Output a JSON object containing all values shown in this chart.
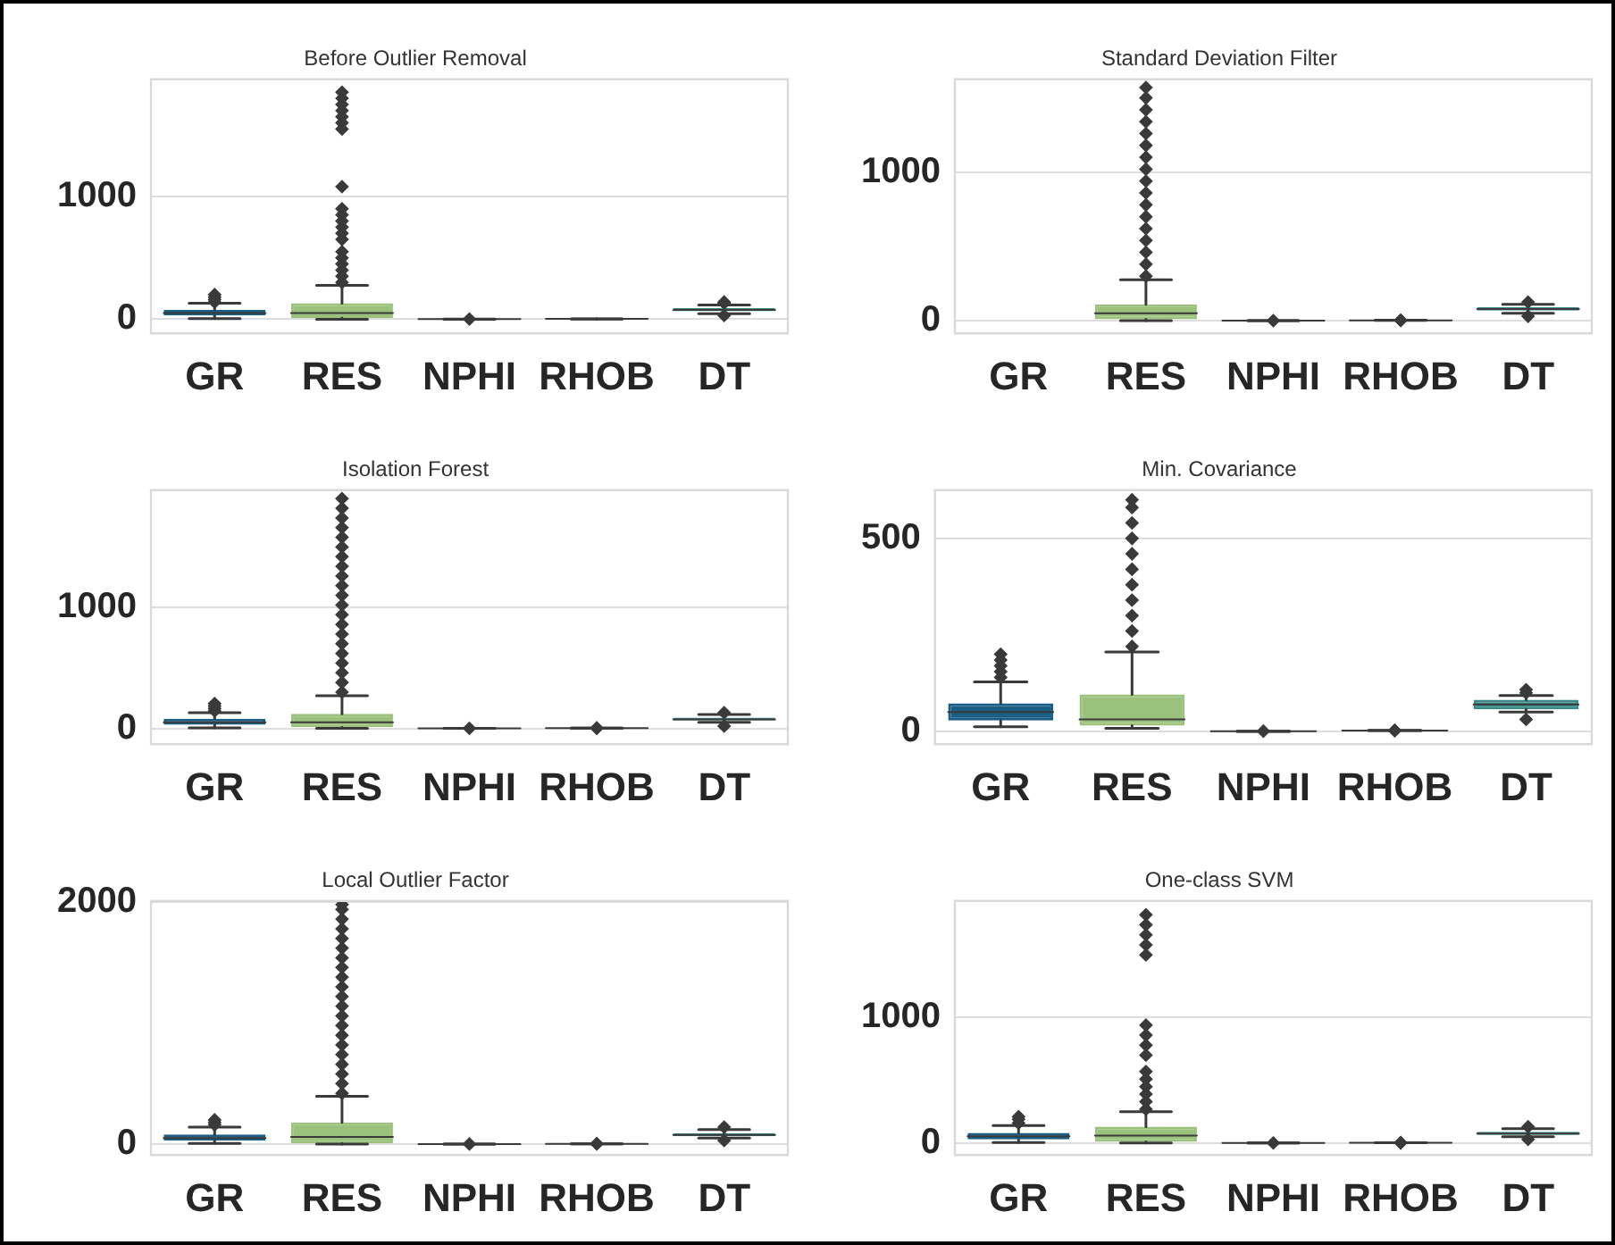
{
  "chart_data": [
    {
      "type": "box",
      "title": "Before Outlier Removal",
      "categories": [
        "GR",
        "RES",
        "NPHI",
        "RHOB",
        "DT"
      ],
      "colors": [
        "#1b5e85",
        "#9bc27c",
        "#5b3a6b",
        "#c9a25b",
        "#3a8a8a"
      ],
      "ylim": [
        -115,
        1955
      ],
      "yticks": [
        0,
        1000
      ],
      "grid": "y",
      "marker": "diamond",
      "boxes": [
        {
          "low": 5,
          "q1": 30,
          "median": 50,
          "q3": 75,
          "high": 130,
          "outliers": [
            140,
            160,
            180,
            200
          ]
        },
        {
          "low": 0,
          "q1": 10,
          "median": 50,
          "q3": 130,
          "high": 275,
          "outliers": [
            300,
            350,
            400,
            450,
            500,
            550,
            650,
            700,
            750,
            800,
            850,
            900,
            1080,
            1550,
            1600,
            1650,
            1700,
            1750,
            1800,
            1850
          ]
        },
        {
          "low": 0,
          "q1": 0.1,
          "median": 0.2,
          "q3": 0.3,
          "high": 0.55,
          "outliers": [
            0.7
          ]
        },
        {
          "low": 2,
          "q1": 2.3,
          "median": 2.45,
          "q3": 2.55,
          "high": 2.8
        },
        {
          "low": 45,
          "q1": 65,
          "median": 75,
          "q3": 90,
          "high": 115,
          "outliers": [
            30,
            130,
            140
          ]
        }
      ]
    },
    {
      "type": "box",
      "title": "Standard Deviation Filter",
      "categories": [
        "GR",
        "RES",
        "NPHI",
        "RHOB",
        "DT"
      ],
      "colors": [
        "#1b5e85",
        "#9bc27c",
        "#5b3a6b",
        "#c9a25b",
        "#3a8a8a"
      ],
      "ylim": [
        -85,
        1625
      ],
      "yticks": [
        0,
        1000
      ],
      "grid": "y",
      "marker": "diamond",
      "boxes": [
        null,
        {
          "low": 0,
          "q1": 10,
          "median": 50,
          "q3": 110,
          "high": 275,
          "outliers": [
            300,
            380,
            460,
            540,
            620,
            700,
            780,
            860,
            940,
            1020,
            1100,
            1180,
            1260,
            1340,
            1420,
            1500,
            1570
          ]
        },
        {
          "low": 0,
          "q1": 0.1,
          "median": 0.2,
          "q3": 0.3,
          "high": 0.55,
          "outliers": [
            0.7
          ]
        },
        {
          "low": 2,
          "q1": 2.3,
          "median": 2.45,
          "q3": 2.55,
          "high": 2.8,
          "outliers": [
            1.8,
            3
          ]
        },
        {
          "low": 50,
          "q1": 68,
          "median": 78,
          "q3": 90,
          "high": 110,
          "outliers": [
            30,
            125
          ]
        }
      ]
    },
    {
      "type": "box",
      "title": "Isolation Forest",
      "categories": [
        "GR",
        "RES",
        "NPHI",
        "RHOB",
        "DT"
      ],
      "colors": [
        "#1b5e85",
        "#9bc27c",
        "#5b3a6b",
        "#c9a25b",
        "#3a8a8a"
      ],
      "ylim": [
        -130,
        1970
      ],
      "yticks": [
        0,
        1000
      ],
      "grid": "y",
      "marker": "diamond",
      "boxes": [
        {
          "low": 5,
          "q1": 30,
          "median": 50,
          "q3": 80,
          "high": 130,
          "outliers": [
            145,
            165,
            185,
            205
          ]
        },
        {
          "low": 0,
          "q1": 10,
          "median": 50,
          "q3": 120,
          "high": 270,
          "outliers": [
            300,
            380,
            460,
            540,
            620,
            700,
            780,
            860,
            940,
            1020,
            1100,
            1180,
            1260,
            1340,
            1420,
            1500,
            1580,
            1660,
            1740,
            1820,
            1900
          ]
        },
        {
          "low": 0,
          "q1": 0.1,
          "median": 0.2,
          "q3": 0.3,
          "high": 0.55,
          "outliers": [
            0.7
          ]
        },
        {
          "low": 2,
          "q1": 2.3,
          "median": 2.45,
          "q3": 2.55,
          "high": 2.8,
          "outliers": [
            1.8,
            3
          ]
        },
        {
          "low": 50,
          "q1": 65,
          "median": 75,
          "q3": 90,
          "high": 115,
          "outliers": [
            20,
            130
          ]
        }
      ]
    },
    {
      "type": "box",
      "title": "Min. Covariance",
      "categories": [
        "GR",
        "RES",
        "NPHI",
        "RHOB",
        "DT"
      ],
      "colors": [
        "#1b5e85",
        "#9bc27c",
        "#5b3a6b",
        "#c9a25b",
        "#3a8a8a"
      ],
      "ylim": [
        -33,
        625
      ],
      "yticks": [
        0,
        500
      ],
      "grid": "y",
      "marker": "diamond",
      "boxes": [
        {
          "low": 12,
          "q1": 28,
          "median": 50,
          "q3": 73,
          "high": 128,
          "outliers": [
            140,
            155,
            170,
            185,
            200
          ]
        },
        {
          "low": 8,
          "q1": 15,
          "median": 31,
          "q3": 96,
          "high": 206,
          "outliers": [
            220,
            260,
            300,
            340,
            380,
            420,
            460,
            500,
            540,
            580,
            600
          ]
        },
        {
          "low": 0,
          "q1": 0.1,
          "median": 0.2,
          "q3": 0.3,
          "high": 0.55,
          "outliers": [
            0.7
          ]
        },
        {
          "low": 2,
          "q1": 2.3,
          "median": 2.45,
          "q3": 2.55,
          "high": 2.8,
          "outliers": [
            1.8,
            3
          ]
        },
        {
          "low": 50,
          "q1": 57,
          "median": 70,
          "q3": 82,
          "high": 93,
          "outliers": [
            31,
            100,
            108
          ]
        }
      ]
    },
    {
      "type": "box",
      "title": "Local Outlier Factor",
      "categories": [
        "GR",
        "RES",
        "NPHI",
        "RHOB",
        "DT"
      ],
      "colors": [
        "#1b5e85",
        "#9bc27c",
        "#5b3a6b",
        "#c9a25b",
        "#3a8a8a"
      ],
      "ylim": [
        -90,
        2010
      ],
      "yticks": [
        0,
        2000
      ],
      "grid": "y",
      "marker": "diamond",
      "boxes": [
        {
          "low": 5,
          "q1": 30,
          "median": 50,
          "q3": 80,
          "high": 140,
          "outliers": [
            160,
            180,
            200
          ]
        },
        {
          "low": 0,
          "q1": 5,
          "median": 60,
          "q3": 180,
          "high": 395,
          "outliers": [
            420,
            500,
            580,
            660,
            740,
            820,
            900,
            980,
            1060,
            1140,
            1220,
            1300,
            1380,
            1460,
            1540,
            1620,
            1700,
            1780,
            1860,
            1940,
            1980
          ]
        },
        {
          "low": 0,
          "q1": 0.1,
          "median": 0.2,
          "q3": 0.3,
          "high": 0.55,
          "outliers": [
            0.7
          ]
        },
        {
          "low": 2,
          "q1": 2.3,
          "median": 2.45,
          "q3": 2.55,
          "high": 2.8,
          "outliers": [
            1.8,
            3
          ]
        },
        {
          "low": 50,
          "q1": 65,
          "median": 75,
          "q3": 90,
          "high": 120,
          "outliers": [
            30,
            140
          ]
        }
      ]
    },
    {
      "type": "box",
      "title": "One-class SVM",
      "categories": [
        "GR",
        "RES",
        "NPHI",
        "RHOB",
        "DT"
      ],
      "colors": [
        "#1b5e85",
        "#9bc27c",
        "#5b3a6b",
        "#c9a25b",
        "#3a8a8a"
      ],
      "ylim": [
        -95,
        1930
      ],
      "yticks": [
        0,
        1000
      ],
      "grid": "y",
      "marker": "diamond",
      "boxes": [
        {
          "low": 5,
          "q1": 30,
          "median": 55,
          "q3": 80,
          "high": 140,
          "outliers": [
            160,
            190,
            210
          ]
        },
        {
          "low": 0,
          "q1": 10,
          "median": 60,
          "q3": 130,
          "high": 250,
          "outliers": [
            270,
            330,
            390,
            450,
            510,
            570,
            700,
            780,
            860,
            940,
            1500,
            1580,
            1660,
            1740,
            1820
          ]
        },
        {
          "low": 0,
          "q1": 0.1,
          "median": 0.2,
          "q3": 0.3,
          "high": 0.55,
          "outliers": [
            0.7
          ]
        },
        {
          "low": 2,
          "q1": 2.3,
          "median": 2.45,
          "q3": 2.55,
          "high": 2.8,
          "outliers": [
            1.8,
            3
          ]
        },
        {
          "low": 50,
          "q1": 65,
          "median": 75,
          "q3": 90,
          "high": 115,
          "outliers": [
            30,
            130
          ]
        }
      ]
    }
  ]
}
